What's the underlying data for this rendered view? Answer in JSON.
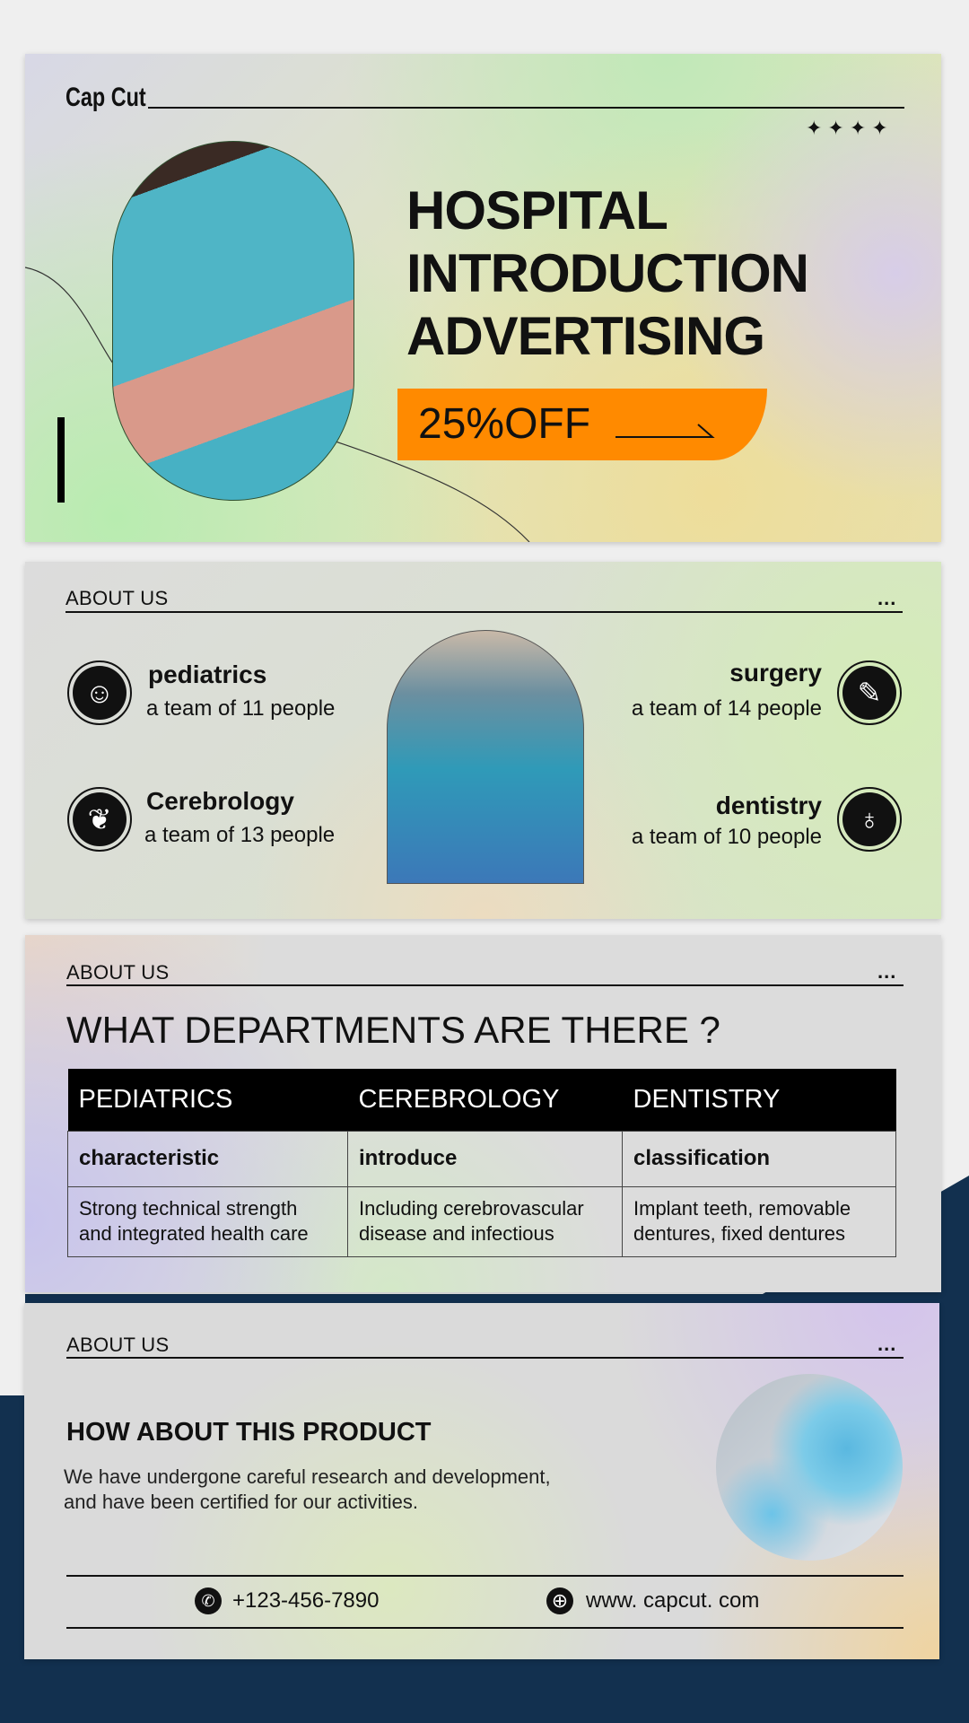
{
  "hero": {
    "brand": "Cap Cut",
    "title_lines": [
      "HOSPITAL",
      "INTRODUCTION",
      "ADVERTISING"
    ],
    "offer": "25%OFF",
    "accent": "#ff8a00"
  },
  "about1": {
    "label": "ABOUT US",
    "more": "...",
    "departments": [
      {
        "name": "pediatrics",
        "sub": "a team of 11 people",
        "icon": "baby-face-icon"
      },
      {
        "name": "Cerebrology",
        "sub": "a team of 13 people",
        "icon": "brain-icon"
      },
      {
        "name": "surgery",
        "sub": "a team of 14 people",
        "icon": "scalpel-icon"
      },
      {
        "name": "dentistry",
        "sub": "a team of 10 people",
        "icon": "tooth-icon"
      }
    ]
  },
  "about2": {
    "label": "ABOUT US",
    "more": "...",
    "title": "WHAT DEPARTMENTS ARE THERE ?",
    "table": {
      "headers": [
        "PEDIATRICS",
        "CEREBROLOGY",
        "DENTISTRY"
      ],
      "subheaders": [
        "characteristic",
        "introduce",
        "classification"
      ],
      "cells": [
        [
          "Strong technical strength",
          "and integrated health care"
        ],
        [
          "Including cerebrovascular",
          "disease and infectious"
        ],
        [
          "Implant teeth, removable",
          "dentures, fixed dentures"
        ]
      ]
    }
  },
  "about3": {
    "label": "ABOUT US",
    "more": "...",
    "title": "HOW ABOUT THIS PRODUCT",
    "body_lines": [
      "We have undergone careful research and development,",
      "and have been certified for our activities."
    ],
    "phone": "+123-456-7890",
    "website": "www. capcut. com"
  },
  "colors": {
    "navy": "#12304f",
    "orange": "#ff8a00"
  }
}
